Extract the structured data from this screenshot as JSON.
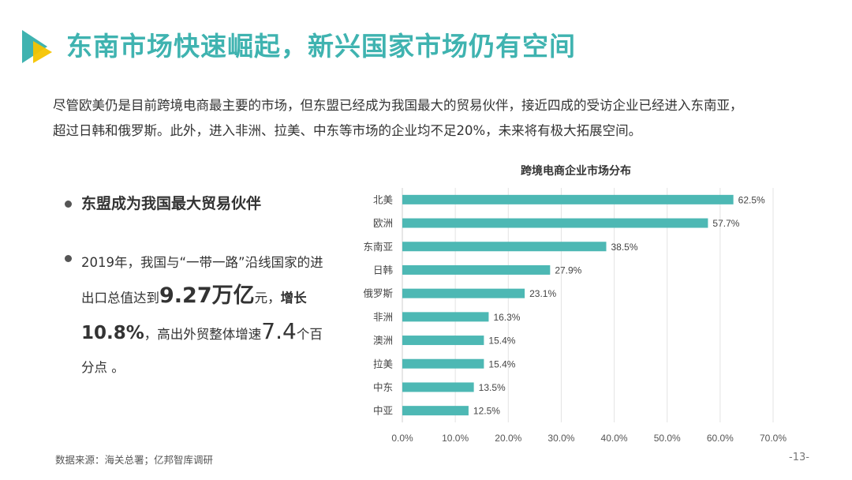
{
  "header": {
    "title": "东南市场快速崛起，新兴国家市场仍有空间"
  },
  "intro": {
    "line1": "尽管欧美仍是目前跨境电商最主要的市场，但东盟已经成为我国最大的贸易伙伴，接近四成的受访企业已经进入东南亚，",
    "line2": "超过日韩和俄罗斯。此外，进入非洲、拉美、中东等市场的企业均不足20%，未来将有极大拓展空间。"
  },
  "bullets": {
    "b1": "东盟成为我国最大贸易伙伴",
    "b2_part1": "2019年，我国与“一带一路”沿线国家的进出口总值达到",
    "b2_big": "9.27万亿",
    "b2_part2": "元，",
    "b2_part3": "增长",
    "b2_pct": "10.8%",
    "b2_part4": "，高出外贸整体增速",
    "b2_num": "7.4",
    "b2_part5": "个百分点 。"
  },
  "footer": {
    "source": "数据来源：海关总署；亿邦智库调研",
    "page": "-13-"
  },
  "colors": {
    "accent": "#3fb3b0",
    "bar": "#4db8b4",
    "logo_yellow": "#f5c400"
  },
  "chart_data": {
    "type": "bar",
    "orientation": "horizontal",
    "title": "跨境电商企业市场分布",
    "categories": [
      "北美",
      "欧洲",
      "东南亚",
      "日韩",
      "俄罗斯",
      "非洲",
      "澳洲",
      "拉美",
      "中东",
      "中亚"
    ],
    "values": [
      62.5,
      57.7,
      38.5,
      27.9,
      23.1,
      16.3,
      15.4,
      15.4,
      13.5,
      12.5
    ],
    "value_labels": [
      "62.5%",
      "57.7%",
      "38.5%",
      "27.9%",
      "23.1%",
      "16.3%",
      "15.4%",
      "15.4%",
      "13.5%",
      "12.5%"
    ],
    "xlim": [
      0,
      70
    ],
    "xticks": [
      "0.0%",
      "10.0%",
      "20.0%",
      "30.0%",
      "40.0%",
      "50.0%",
      "60.0%",
      "70.0%"
    ],
    "grid": true,
    "xlabel": "",
    "ylabel": ""
  }
}
